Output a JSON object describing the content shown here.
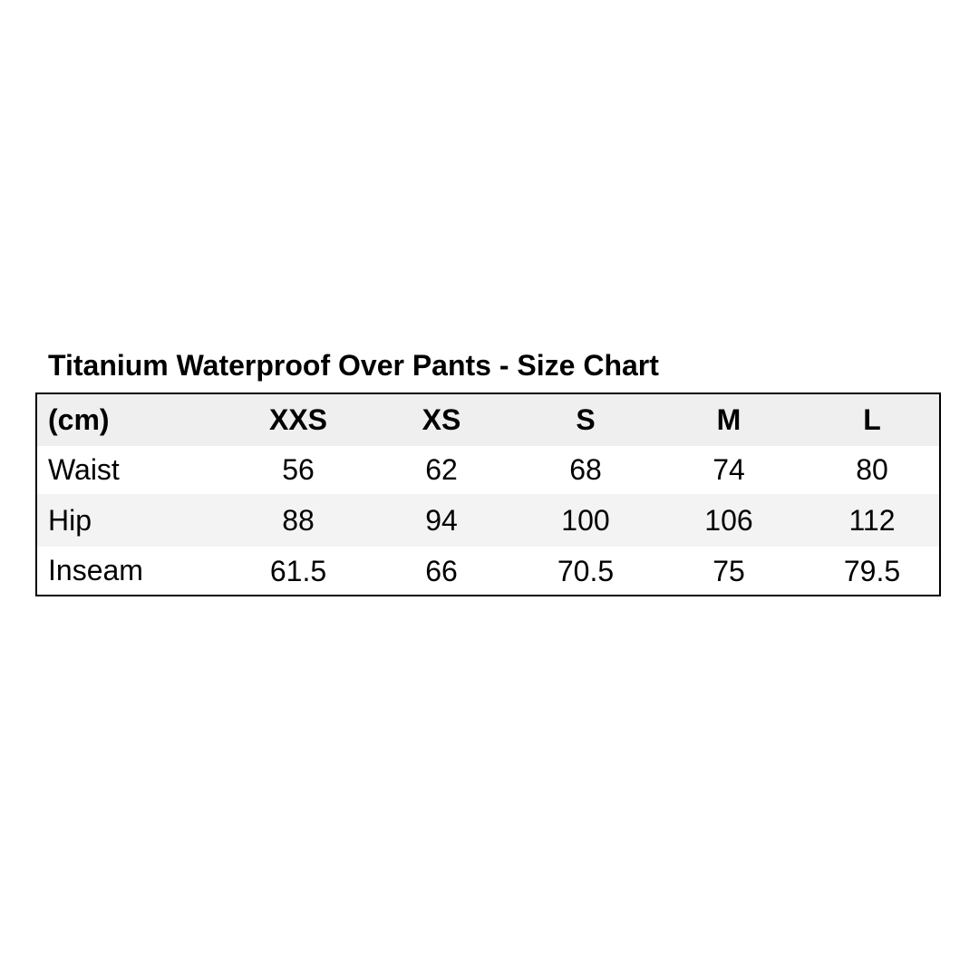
{
  "title": "Titanium Waterproof Over Pants - Size Chart",
  "table": {
    "headers": [
      "(cm)",
      "XXS",
      "XS",
      "S",
      "M",
      "L"
    ],
    "rows": [
      {
        "label": "Waist",
        "values": [
          "56",
          "62",
          "68",
          "74",
          "80"
        ]
      },
      {
        "label": "Hip",
        "values": [
          "88",
          "94",
          "100",
          "106",
          "112"
        ]
      },
      {
        "label": "Inseam",
        "values": [
          "61.5",
          "66",
          "70.5",
          "75",
          "79.5"
        ]
      }
    ]
  },
  "colors": {
    "header_bg": "#efefef",
    "stripe_bg": "#f3f3f3",
    "border": "#000000"
  }
}
